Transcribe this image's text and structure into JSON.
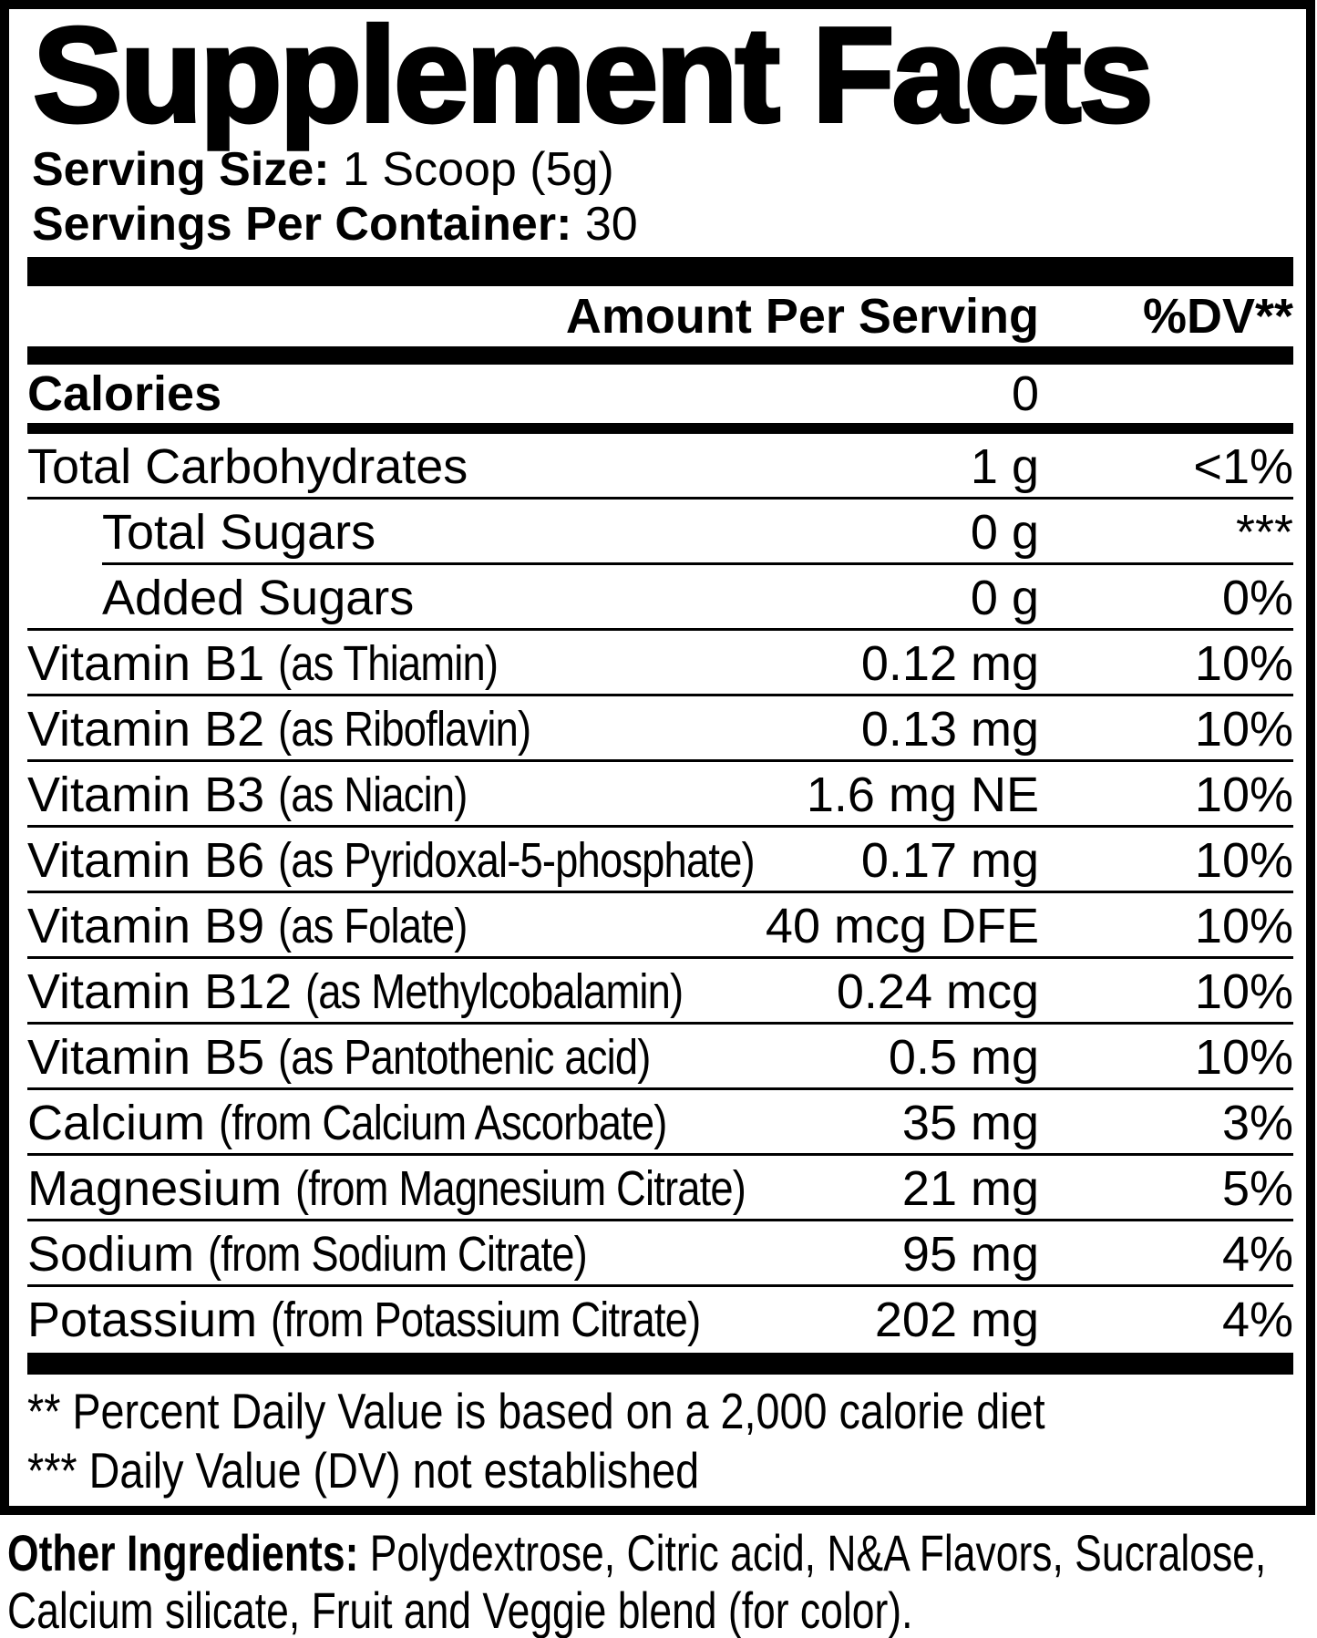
{
  "label": {
    "title": "Supplement Facts",
    "serving_size_label": "Serving Size:",
    "serving_size_value": "1 Scoop (5g)",
    "servings_per_container_label": "Servings Per Container:",
    "servings_per_container_value": "30",
    "columns": {
      "amount_header": "Amount Per Serving",
      "dv_header": "%DV**"
    },
    "calories": {
      "name": "Calories",
      "amount": "0",
      "dv": ""
    },
    "rows": [
      {
        "name": "Total Carbohydrates",
        "detail": "",
        "amount": "1 g",
        "dv": "<1%",
        "indent": false,
        "indent_line_below": false
      },
      {
        "name": "Total Sugars",
        "detail": "",
        "amount": "0 g",
        "dv": "***",
        "indent": true,
        "indent_line_below": true
      },
      {
        "name": "Added Sugars",
        "detail": "",
        "amount": "0 g",
        "dv": "0%",
        "indent": true,
        "indent_line_below": false
      },
      {
        "name": "Vitamin B1",
        "detail": "(as Thiamin)",
        "amount": "0.12 mg",
        "dv": "10%",
        "indent": false,
        "indent_line_below": false
      },
      {
        "name": "Vitamin B2",
        "detail": "(as Riboflavin)",
        "amount": "0.13 mg",
        "dv": "10%",
        "indent": false,
        "indent_line_below": false
      },
      {
        "name": "Vitamin B3",
        "detail": "(as Niacin)",
        "amount": "1.6 mg NE",
        "dv": "10%",
        "indent": false,
        "indent_line_below": false
      },
      {
        "name": "Vitamin B6",
        "detail": "(as Pyridoxal-5-phosphate)",
        "amount": "0.17 mg",
        "dv": "10%",
        "indent": false,
        "indent_line_below": false
      },
      {
        "name": "Vitamin B9",
        "detail": "(as Folate)",
        "amount": "40 mcg DFE",
        "dv": "10%",
        "indent": false,
        "indent_line_below": false
      },
      {
        "name": "Vitamin B12",
        "detail": "(as Methylcobalamin)",
        "amount": "0.24 mcg",
        "dv": "10%",
        "indent": false,
        "indent_line_below": false
      },
      {
        "name": "Vitamin B5",
        "detail": "(as Pantothenic acid)",
        "amount": "0.5 mg",
        "dv": "10%",
        "indent": false,
        "indent_line_below": false
      },
      {
        "name": "Calcium",
        "detail": "(from Calcium Ascorbate)",
        "amount": "35 mg",
        "dv": "3%",
        "indent": false,
        "indent_line_below": false
      },
      {
        "name": "Magnesium",
        "detail": "(from Magnesium Citrate)",
        "amount": "21 mg",
        "dv": "5%",
        "indent": false,
        "indent_line_below": false
      },
      {
        "name": "Sodium",
        "detail": "(from Sodium Citrate)",
        "amount": "95 mg",
        "dv": "4%",
        "indent": false,
        "indent_line_below": false
      },
      {
        "name": "Potassium",
        "detail": "(from Potassium Citrate)",
        "amount": "202 mg",
        "dv": "4%",
        "indent": false,
        "indent_line_below": false
      }
    ],
    "footnotes": [
      "** Percent Daily Value is based on a 2,000 calorie diet",
      "*** Daily Value (DV) not established"
    ],
    "other_ingredients_label": "Other Ingredients:",
    "other_ingredients_value": " Polydextrose, Citric acid, N&A Flavors, Sucralose, Calcium silicate, Fruit and Veggie blend (for color).",
    "colors": {
      "text": "#000000",
      "background": "#ffffff"
    }
  }
}
